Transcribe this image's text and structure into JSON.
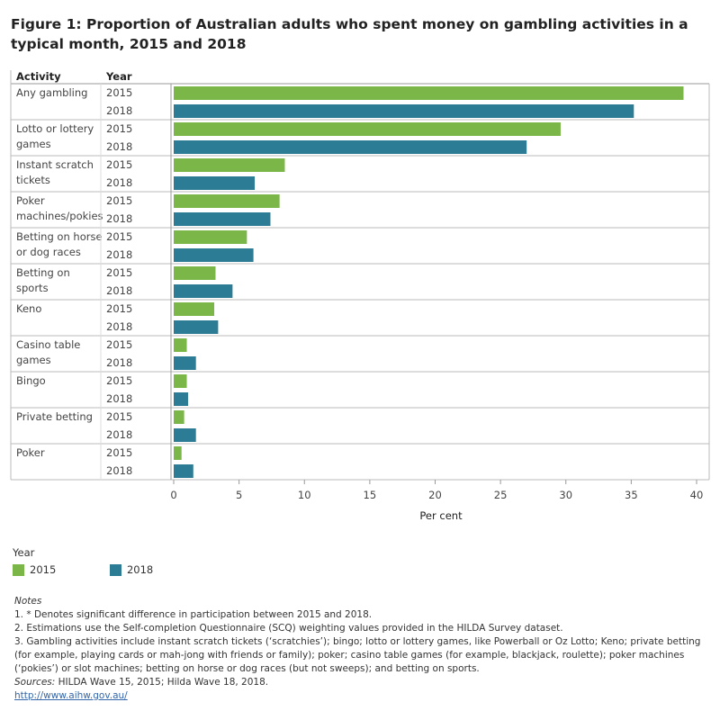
{
  "title": "Figure 1: Proportion of Australian adults who spent money on gambling activities in a typical month, 2015 and 2018",
  "chart_data": {
    "type": "bar",
    "orientation": "horizontal",
    "column_headers": [
      "Activity",
      "Year"
    ],
    "categories": [
      "Any gambling",
      "Lotto or lottery games",
      "Instant scratch tickets",
      "Poker machines/pokies",
      "Betting on horse or dog races",
      "Betting on sports",
      "Keno",
      "Casino table games",
      "Bingo",
      "Private betting",
      "Poker"
    ],
    "series": [
      {
        "name": "2015",
        "color": "#7ab648",
        "values": [
          39.0,
          29.6,
          8.5,
          8.1,
          5.6,
          3.2,
          3.1,
          1.0,
          1.0,
          0.8,
          0.6
        ]
      },
      {
        "name": "2018",
        "color": "#2b7c94",
        "values": [
          35.2,
          27.0,
          6.2,
          7.4,
          6.1,
          4.5,
          3.4,
          1.7,
          1.1,
          1.7,
          1.5
        ]
      }
    ],
    "xlabel": "Per cent",
    "xlim": [
      0,
      41
    ],
    "xticks": [
      0,
      5,
      10,
      15,
      20,
      25,
      30,
      35,
      40
    ],
    "legend_title": "Year",
    "legend_position": "bottom-left",
    "grid": false
  },
  "notes": {
    "heading": "Notes",
    "lines": [
      "1. * Denotes significant difference in participation between 2015 and 2018.",
      "2. Estimations use the Self-completion Questionnaire (SCQ) weighting values provided in the HILDA Survey dataset.",
      "3. Gambling activities include instant scratch tickets (‘scratchies’); bingo; lotto or lottery games, like Powerball or Oz Lotto; Keno; private betting (for example, playing cards or mah-jong with friends or family); poker; casino table games (for example, blackjack, roulette); poker machines (‘pokies’) or slot machines; betting on horse or dog races (but not sweeps); and betting on sports."
    ],
    "sources_label": "Sources:",
    "sources": " HILDA Wave 15, 2015; Hilda Wave 18, 2018.",
    "link": "http://www.aihw.gov.au/"
  }
}
